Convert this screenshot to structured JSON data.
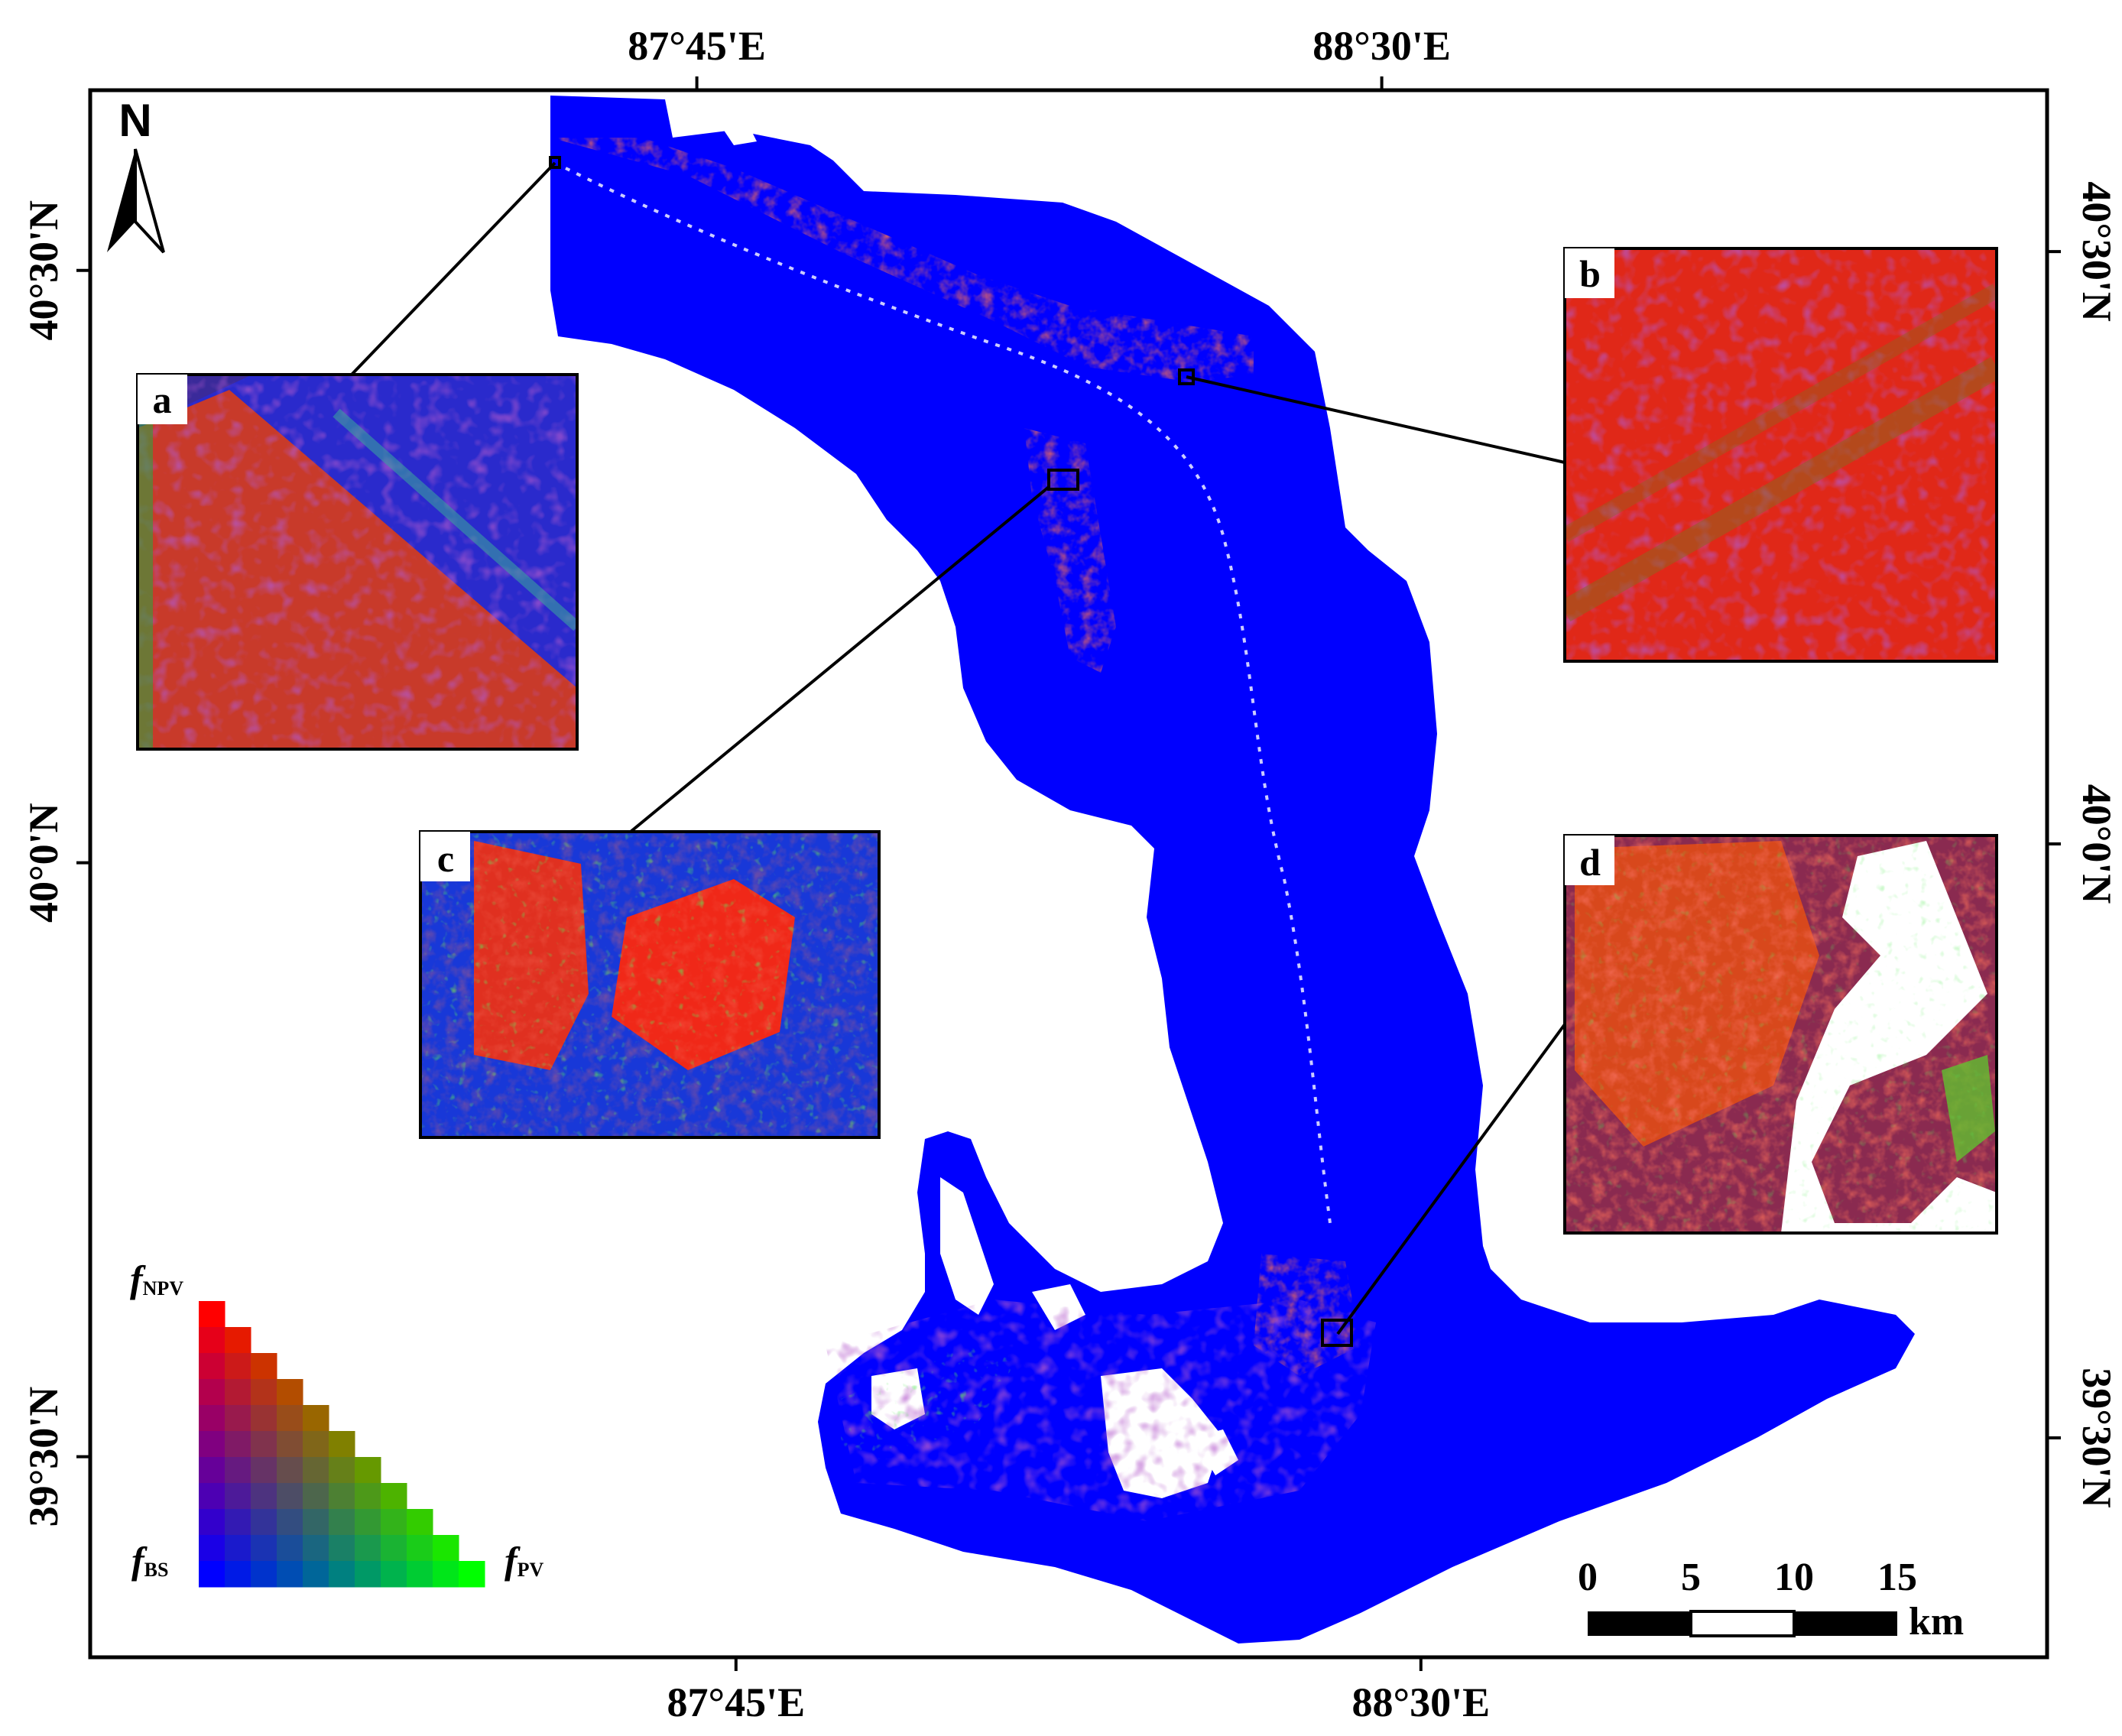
{
  "axes": {
    "top": [
      {
        "label": "87°45'E",
        "frac": 0.31
      },
      {
        "label": "88°30'E",
        "frac": 0.66
      }
    ],
    "bottom": [
      {
        "label": "87°45'E",
        "frac": 0.33
      },
      {
        "label": "88°30'E",
        "frac": 0.68
      }
    ],
    "left": [
      {
        "label": "40°30'N",
        "frac": 0.115
      },
      {
        "label": "40°0'N",
        "frac": 0.493
      },
      {
        "label": "39°30'N",
        "frac": 0.872
      }
    ],
    "right": [
      {
        "label": "40°30'N",
        "frac": 0.103
      },
      {
        "label": "40°0'N",
        "frac": 0.481
      },
      {
        "label": "39°30'N",
        "frac": 0.86
      }
    ]
  },
  "north_arrow": {
    "label": "N"
  },
  "insets": [
    {
      "id": "a",
      "label": "a"
    },
    {
      "id": "b",
      "label": "b"
    },
    {
      "id": "c",
      "label": "c"
    },
    {
      "id": "d",
      "label": "d"
    }
  ],
  "scale_bar": {
    "ticks": [
      "0",
      "5",
      "10",
      "15"
    ],
    "unit": "km"
  },
  "legend": {
    "top": {
      "main": "f",
      "sub": "NPV"
    },
    "bottom_left": {
      "main": "f",
      "sub": "BS"
    },
    "bottom_right": {
      "main": "f",
      "sub": "PV"
    },
    "colors": {
      "npv": "#ff0000",
      "bs": "#0000ff",
      "pv": "#00ff00"
    }
  }
}
